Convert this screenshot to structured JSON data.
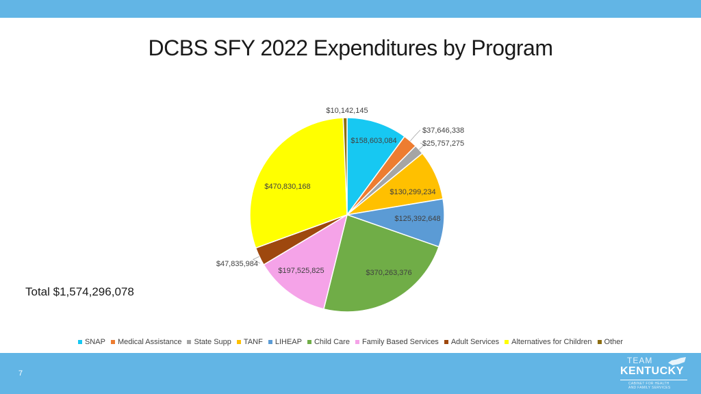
{
  "title": "DCBS SFY 2022 Expenditures by Program",
  "total_label": "Total $1,574,296,078",
  "page_number": "7",
  "logo": {
    "team": "TEAM",
    "state": "KENTUCKY",
    "subtitle_line1": "CABINET FOR HEALTH",
    "subtitle_line2": "AND FAMILY SERVICES"
  },
  "colors": {
    "band": "#62b5e5"
  },
  "chart_data": {
    "type": "pie",
    "title": "DCBS SFY 2022 Expenditures by Program",
    "start_angle_deg": 0,
    "direction": "clockwise",
    "legend_position": "bottom",
    "slices": [
      {
        "name": "SNAP",
        "value": 158603084,
        "label": "$158,603,084",
        "color": "#17c8f2"
      },
      {
        "name": "Medical Assistance",
        "value": 37646338,
        "label": "$37,646,338",
        "color": "#ed7d31"
      },
      {
        "name": "State Supp",
        "value": 25757275,
        "label": "$25,757,275",
        "color": "#a5a5a5"
      },
      {
        "name": "TANF",
        "value": 130299234,
        "label": "$130,299,234",
        "color": "#ffc000"
      },
      {
        "name": "LIHEAP",
        "value": 125392648,
        "label": "$125,392,648",
        "color": "#5b9bd5"
      },
      {
        "name": "Child Care",
        "value": 370263376,
        "label": "$370,263,376",
        "color": "#70ad47"
      },
      {
        "name": "Family Based Services",
        "value": 197525825,
        "label": "$197,525,825",
        "color": "#f5a3e8"
      },
      {
        "name": "Adult Services",
        "value": 47835984,
        "label": "$47,835,984",
        "color": "#9e480e"
      },
      {
        "name": "Alternatives for Children",
        "value": 470830168,
        "label": "$470,830,168",
        "color": "#ffff00"
      },
      {
        "name": "Other",
        "value": 10142145,
        "label": "$10,142,145",
        "color": "#8c6d12"
      }
    ]
  }
}
